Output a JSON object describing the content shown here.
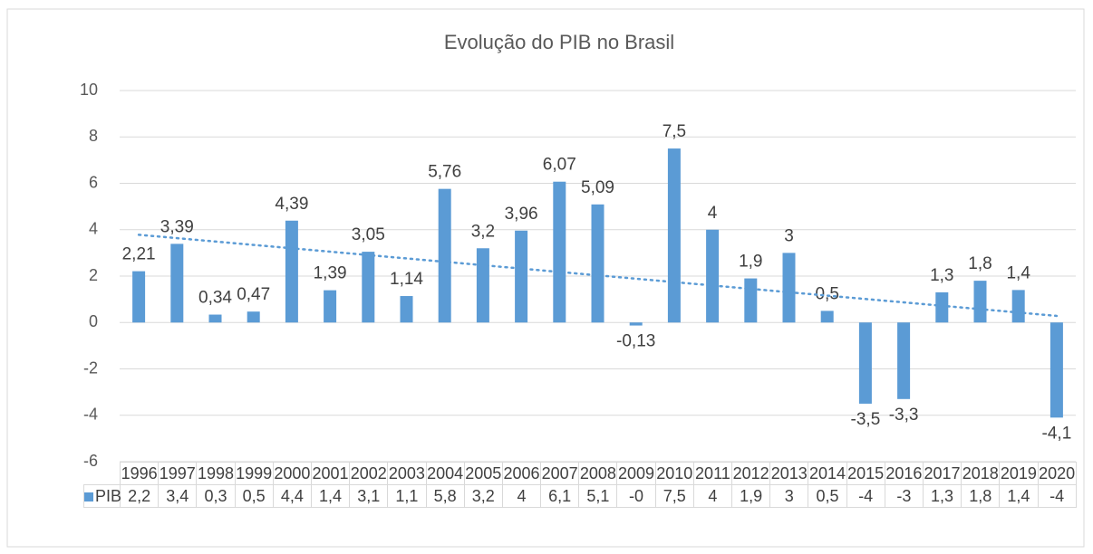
{
  "chart_data": {
    "type": "bar",
    "title": "Evolução do PIB no Brasil",
    "categories": [
      "1996",
      "1997",
      "1998",
      "1999",
      "2000",
      "2001",
      "2002",
      "2003",
      "2004",
      "2005",
      "2006",
      "2007",
      "2008",
      "2009",
      "2010",
      "2011",
      "2012",
      "2013",
      "2014",
      "2015",
      "2016",
      "2017",
      "2018",
      "2019",
      "2020"
    ],
    "series": [
      {
        "name": "PIB",
        "color": "#5b9bd5",
        "values": [
          2.21,
          3.39,
          0.34,
          0.47,
          4.39,
          1.39,
          3.05,
          1.14,
          5.76,
          3.2,
          3.96,
          6.07,
          5.09,
          -0.13,
          7.5,
          4,
          1.9,
          3,
          0.5,
          -3.5,
          -3.3,
          1.3,
          1.8,
          1.4,
          -4.1
        ],
        "value_labels": [
          "2,21",
          "3,39",
          "0,34",
          "0,47",
          "4,39",
          "1,39",
          "3,05",
          "1,14",
          "5,76",
          "3,2",
          "3,96",
          "6,07",
          "5,09",
          "-0,13",
          "7,5",
          "4",
          "1,9",
          "3",
          "0,5",
          "-3,5",
          "-3,3",
          "1,3",
          "1,8",
          "1,4",
          "-4,1"
        ],
        "table_labels": [
          "2,2",
          "3,4",
          "0,3",
          "0,5",
          "4,4",
          "1,4",
          "3,1",
          "1,1",
          "5,8",
          "3,2",
          "4",
          "6,1",
          "5,1",
          "-0",
          "7,5",
          "4",
          "1,9",
          "3",
          "0,5",
          "-4",
          "-3",
          "1,3",
          "1,8",
          "1,4",
          "-4"
        ]
      }
    ],
    "ylim": [
      -6,
      10
    ],
    "yticks": [
      -6,
      -4,
      -2,
      0,
      2,
      4,
      6,
      8,
      10
    ],
    "grid": true,
    "trendline": true,
    "trendline_color": "#5b9bd5"
  }
}
